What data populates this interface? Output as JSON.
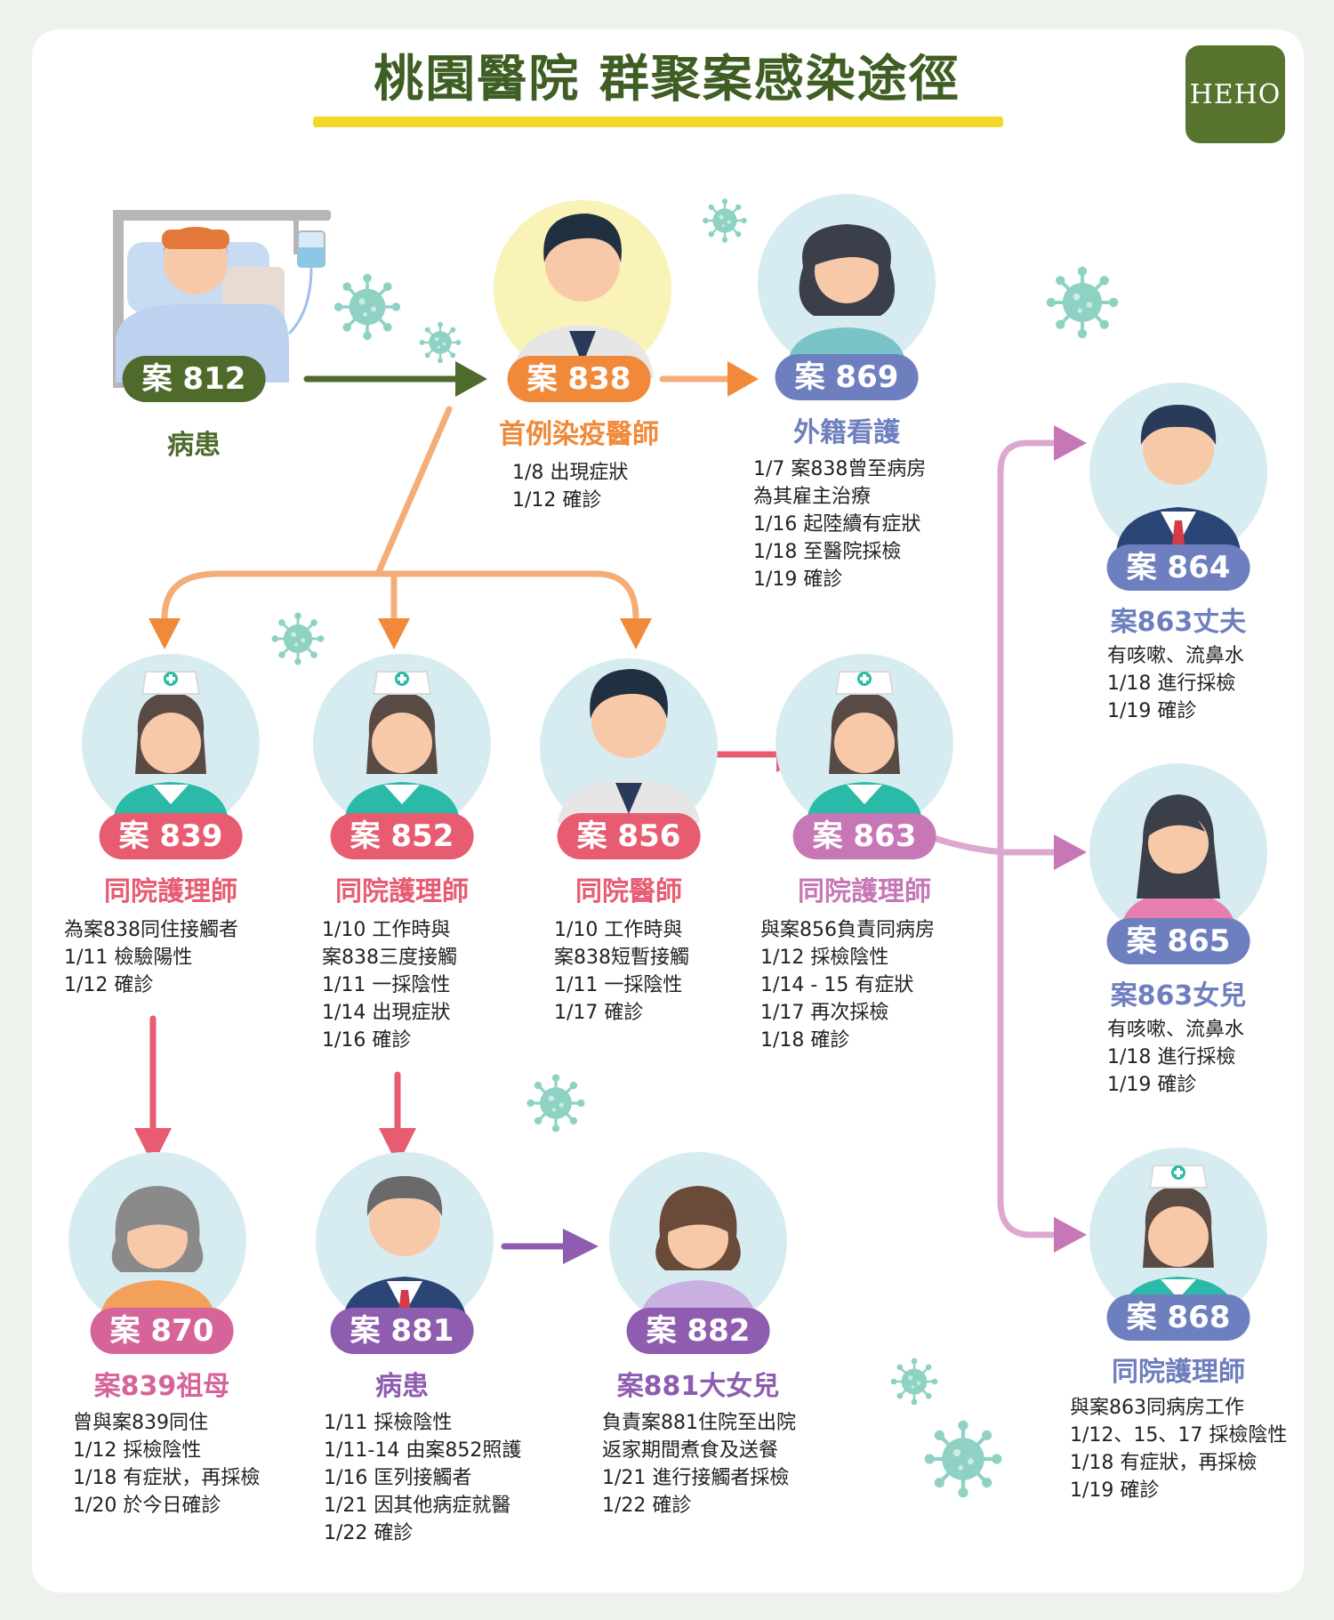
{
  "title": "桃園醫院 群聚案感染途徑",
  "logo": "HEHO",
  "colors": {
    "olive": "#4e6b2c",
    "orange": "#f08a3a",
    "periwinkle": "#6e7fbf",
    "coral": "#e85c72",
    "pink": "#d6649a",
    "purple": "#8f5db0",
    "mauve": "#c777b6",
    "circle_bg": "#d7ecf1",
    "virus": "#8fd2c4"
  },
  "nodes": {
    "c812": {
      "badge": "案 812",
      "role": "病患",
      "lines": []
    },
    "c838": {
      "badge": "案 838",
      "role": "首例染疫醫師",
      "lines": [
        "1/8 出現症狀",
        "1/12 確診"
      ]
    },
    "c869": {
      "badge": "案 869",
      "role": "外籍看護",
      "lines": [
        "1/7 案838曾至病房",
        "為其雇主治療",
        "1/16 起陸續有症狀",
        "1/18 至醫院採檢",
        "1/19 確診"
      ]
    },
    "c864": {
      "badge": "案 864",
      "role": "案863丈夫",
      "lines": [
        "有咳嗽、流鼻水",
        "1/18 進行採檢",
        "1/19 確診"
      ]
    },
    "c865": {
      "badge": "案 865",
      "role": "案863女兒",
      "lines": [
        "有咳嗽、流鼻水",
        "1/18 進行採檢",
        "1/19 確診"
      ]
    },
    "c868": {
      "badge": "案 868",
      "role": "同院護理師",
      "lines": [
        "與案863同病房工作",
        "1/12、15、17 採檢陰性",
        "1/18 有症狀，再採檢",
        "1/19 確診"
      ]
    },
    "c839": {
      "badge": "案 839",
      "role": "同院護理師",
      "lines": [
        "為案838同住接觸者",
        "1/11 檢驗陽性",
        "1/12 確診"
      ]
    },
    "c852": {
      "badge": "案 852",
      "role": "同院護理師",
      "lines": [
        "1/10 工作時與",
        "案838三度接觸",
        "1/11 一採陰性",
        "1/14 出現症狀",
        "1/16 確診"
      ]
    },
    "c856": {
      "badge": "案 856",
      "role": "同院醫師",
      "lines": [
        "1/10 工作時與",
        "案838短暫接觸",
        "1/11 一採陰性",
        "1/17 確診"
      ]
    },
    "c863": {
      "badge": "案 863",
      "role": "同院護理師",
      "lines": [
        "與案856負責同病房",
        "1/12 採檢陰性",
        "1/14 - 15 有症狀",
        "1/17 再次採檢",
        "1/18 確診"
      ]
    },
    "c870": {
      "badge": "案 870",
      "role": "案839祖母",
      "lines": [
        "曾與案839同住",
        "1/12 採檢陰性",
        "1/18 有症狀，再採檢",
        "1/20 於今日確診"
      ]
    },
    "c881": {
      "badge": "案 881",
      "role": "病患",
      "lines": [
        "1/11 採檢陰性",
        "1/11-14 由案852照護",
        "1/16 匡列接觸者",
        "1/21 因其他病症就醫",
        "1/22 確診"
      ]
    },
    "c882": {
      "badge": "案 882",
      "role": "案881大女兒",
      "lines": [
        "負責案881住院至出院",
        "返家期間煮食及送餐",
        "1/21 進行接觸者採檢",
        "1/22 確診"
      ]
    }
  },
  "edges": [
    {
      "from": "c812",
      "to": "c838"
    },
    {
      "from": "c838",
      "to": "c869"
    },
    {
      "from": "c838",
      "to": "c839"
    },
    {
      "from": "c838",
      "to": "c852"
    },
    {
      "from": "c838",
      "to": "c856"
    },
    {
      "from": "c856",
      "to": "c863"
    },
    {
      "from": "c863",
      "to": "c864"
    },
    {
      "from": "c863",
      "to": "c865"
    },
    {
      "from": "c863",
      "to": "c868"
    },
    {
      "from": "c839",
      "to": "c870"
    },
    {
      "from": "c852",
      "to": "c881"
    },
    {
      "from": "c881",
      "to": "c882"
    }
  ]
}
